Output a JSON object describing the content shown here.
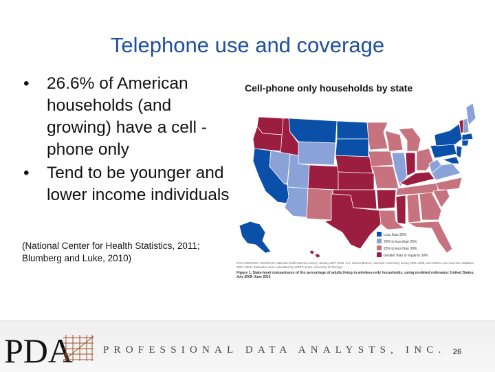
{
  "slide": {
    "title": "Telephone use and coverage",
    "bullets": [
      {
        "marker": "•",
        "text": "26.6% of American households (and growing) have a cell -phone only"
      },
      {
        "marker": "•",
        "text": "Tend to be younger and lower income individuals"
      }
    ],
    "citation": "(National Center for Health Statistics, 2011; Blumberg and Luke, 2010)"
  },
  "map": {
    "heading": "Cell-phone only households by state",
    "legend": [
      {
        "label": "Less than 20%",
        "color": "#0a4fa8"
      },
      {
        "label": "20% to less than 25%",
        "color": "#8aa2d8"
      },
      {
        "label": "25% to less than 30%",
        "color": "#c7727f"
      },
      {
        "label": "Greater than or equal to 30%",
        "color": "#9b1d3f"
      }
    ],
    "source_line1": "DATA SOURCES: CDC/NCHS, National Health Interview Survey, January 2007–2010; U.S. Census Bureau, American Community Survey 2005–2009; and infoUSA.com consumer database,",
    "source_line2": "2007–2010. Estimates were calculated by NORC at the University of Chicago.",
    "caption_line1": "Figure 1. State-level comparisons of the percentage of adults living in wireless-only households, using modeled estimates: United States,",
    "caption_line2": "July 2009–June 2010"
  },
  "footer": {
    "logo_text": "PDA",
    "tagline": "PROFESSIONAL DATA ANALYSTS, INC.",
    "page_number": "26"
  }
}
